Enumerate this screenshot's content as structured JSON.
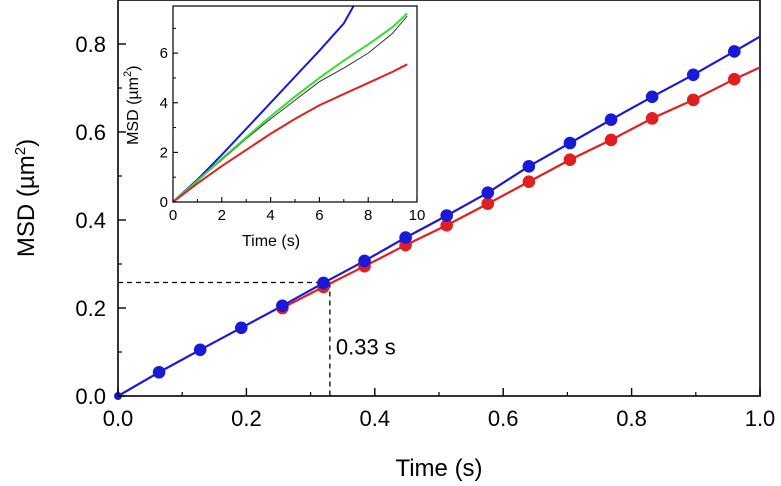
{
  "chart_data": [
    {
      "type": "scatter",
      "name": "main",
      "xlabel": "Time (s)",
      "ylabel": "MSD (µm",
      "ylabel_sup": "2",
      "ylabel_close": ")",
      "xlim": [
        0,
        1.0
      ],
      "ylim": [
        0,
        0.9
      ],
      "xticks": [
        0.0,
        0.2,
        0.4,
        0.6,
        0.8,
        1.0
      ],
      "xtick_labels": [
        "0.0",
        "0.2",
        "0.4",
        "0.6",
        "0.8",
        "1.0"
      ],
      "yticks": [
        0.0,
        0.2,
        0.4,
        0.6,
        0.8
      ],
      "ytick_labels": [
        "0.0",
        "0.2",
        "0.4",
        "0.6",
        "0.8"
      ],
      "grid": false,
      "series": [
        {
          "name": "blue",
          "color": "#1a1ad6",
          "line_end": [
            1.0,
            0.817
          ],
          "x": [
            0.0,
            0.064,
            0.128,
            0.192,
            0.256,
            0.32,
            0.384,
            0.448,
            0.512,
            0.576,
            0.64,
            0.704,
            0.768,
            0.832,
            0.896,
            0.96
          ],
          "y": [
            0.0,
            0.054,
            0.105,
            0.155,
            0.205,
            0.257,
            0.307,
            0.36,
            0.41,
            0.462,
            0.522,
            0.575,
            0.628,
            0.68,
            0.73,
            0.783
          ]
        },
        {
          "name": "red",
          "color": "#e02020",
          "line_end": [
            1.0,
            0.747
          ],
          "x": [
            0.256,
            0.32,
            0.384,
            0.448,
            0.512,
            0.576,
            0.64,
            0.704,
            0.768,
            0.832,
            0.896,
            0.96
          ],
          "y": [
            0.2,
            0.248,
            0.295,
            0.343,
            0.388,
            0.437,
            0.487,
            0.537,
            0.582,
            0.631,
            0.673,
            0.72
          ]
        }
      ],
      "annotation": {
        "text": "0.33 s",
        "x": 0.33,
        "y": 0.258
      }
    },
    {
      "type": "line",
      "name": "inset",
      "xlabel": "Time (s)",
      "ylabel": "MSD (µm",
      "ylabel_sup": "2",
      "ylabel_close": ")",
      "xlim": [
        0,
        10
      ],
      "ylim": [
        0,
        7.9
      ],
      "xticks": [
        0,
        2,
        4,
        6,
        8,
        10
      ],
      "xtick_labels": [
        "0",
        "2",
        "4",
        "6",
        "8",
        "10"
      ],
      "yticks": [
        0,
        2,
        4,
        6
      ],
      "ytick_labels": [
        "0",
        "2",
        "4",
        "6"
      ],
      "series": [
        {
          "name": "blue",
          "color": "#1a1ad6",
          "x": [
            0,
            1,
            2,
            3,
            4,
            5,
            6,
            7,
            7.4
          ],
          "y": [
            0,
            0.9,
            1.9,
            2.95,
            4.0,
            5.05,
            6.1,
            7.2,
            7.9
          ]
        },
        {
          "name": "black",
          "color": "#333333",
          "x": [
            0,
            1,
            2,
            3,
            4,
            5,
            6,
            7,
            8,
            9,
            9.6
          ],
          "y": [
            0,
            0.85,
            1.7,
            2.55,
            3.35,
            4.1,
            4.85,
            5.4,
            6.0,
            6.8,
            7.5
          ]
        },
        {
          "name": "green",
          "color": "#33dd33",
          "x": [
            0,
            1,
            2,
            3,
            4,
            5,
            6,
            7,
            8,
            9,
            9.6
          ],
          "y": [
            0,
            0.85,
            1.75,
            2.6,
            3.45,
            4.25,
            5.0,
            5.7,
            6.35,
            7.05,
            7.6
          ]
        },
        {
          "name": "red",
          "color": "#e02020",
          "x": [
            0,
            1,
            2,
            3,
            4,
            5,
            6,
            7,
            8,
            9,
            9.6
          ],
          "y": [
            0,
            0.75,
            1.45,
            2.1,
            2.75,
            3.35,
            3.9,
            4.35,
            4.8,
            5.25,
            5.55
          ]
        }
      ]
    }
  ]
}
